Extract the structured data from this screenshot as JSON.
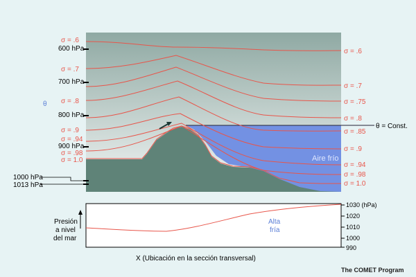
{
  "left_sigma_labels": [
    "σ = .6",
    "σ = .7",
    "σ = .8",
    "σ = .9",
    "σ = .94",
    "σ = .98",
    "σ = 1.0"
  ],
  "right_sigma_labels": [
    "σ = .6",
    "σ = .7",
    "σ = .75",
    "σ = .8",
    "σ = .85",
    "σ = .9",
    "σ = .94",
    "σ = .98",
    "σ = 1.0"
  ],
  "pressure_labels": [
    "600 hPa",
    "700 hPa",
    "800 hPa",
    "900 hPa",
    "1000 hPa",
    "1013 hPa"
  ],
  "theta_left": "θ",
  "theta_right": "θ = Const.",
  "cold_air_label": "Aire frío",
  "high_cold_label_1": "Alta",
  "high_cold_label_2": "fría",
  "slp_label_1": "Presión",
  "slp_label_2": "a nivel",
  "slp_label_3": "del mar",
  "slp_axis_unit": "1030 (hPa)",
  "slp_axis_ticks": [
    "1020",
    "1010",
    "1000",
    "990"
  ],
  "x_axis_label": "X (Ubicación en la sección transversal)",
  "credit": "The COMET Program",
  "colors": {
    "background": "#e7f3f4",
    "sigma_line": "#e8554a",
    "terrain": "#5f8378",
    "cold_air": "#7391e3",
    "sky_top": "#8fa9a3",
    "sky_bottom": "#f3f6f5"
  }
}
